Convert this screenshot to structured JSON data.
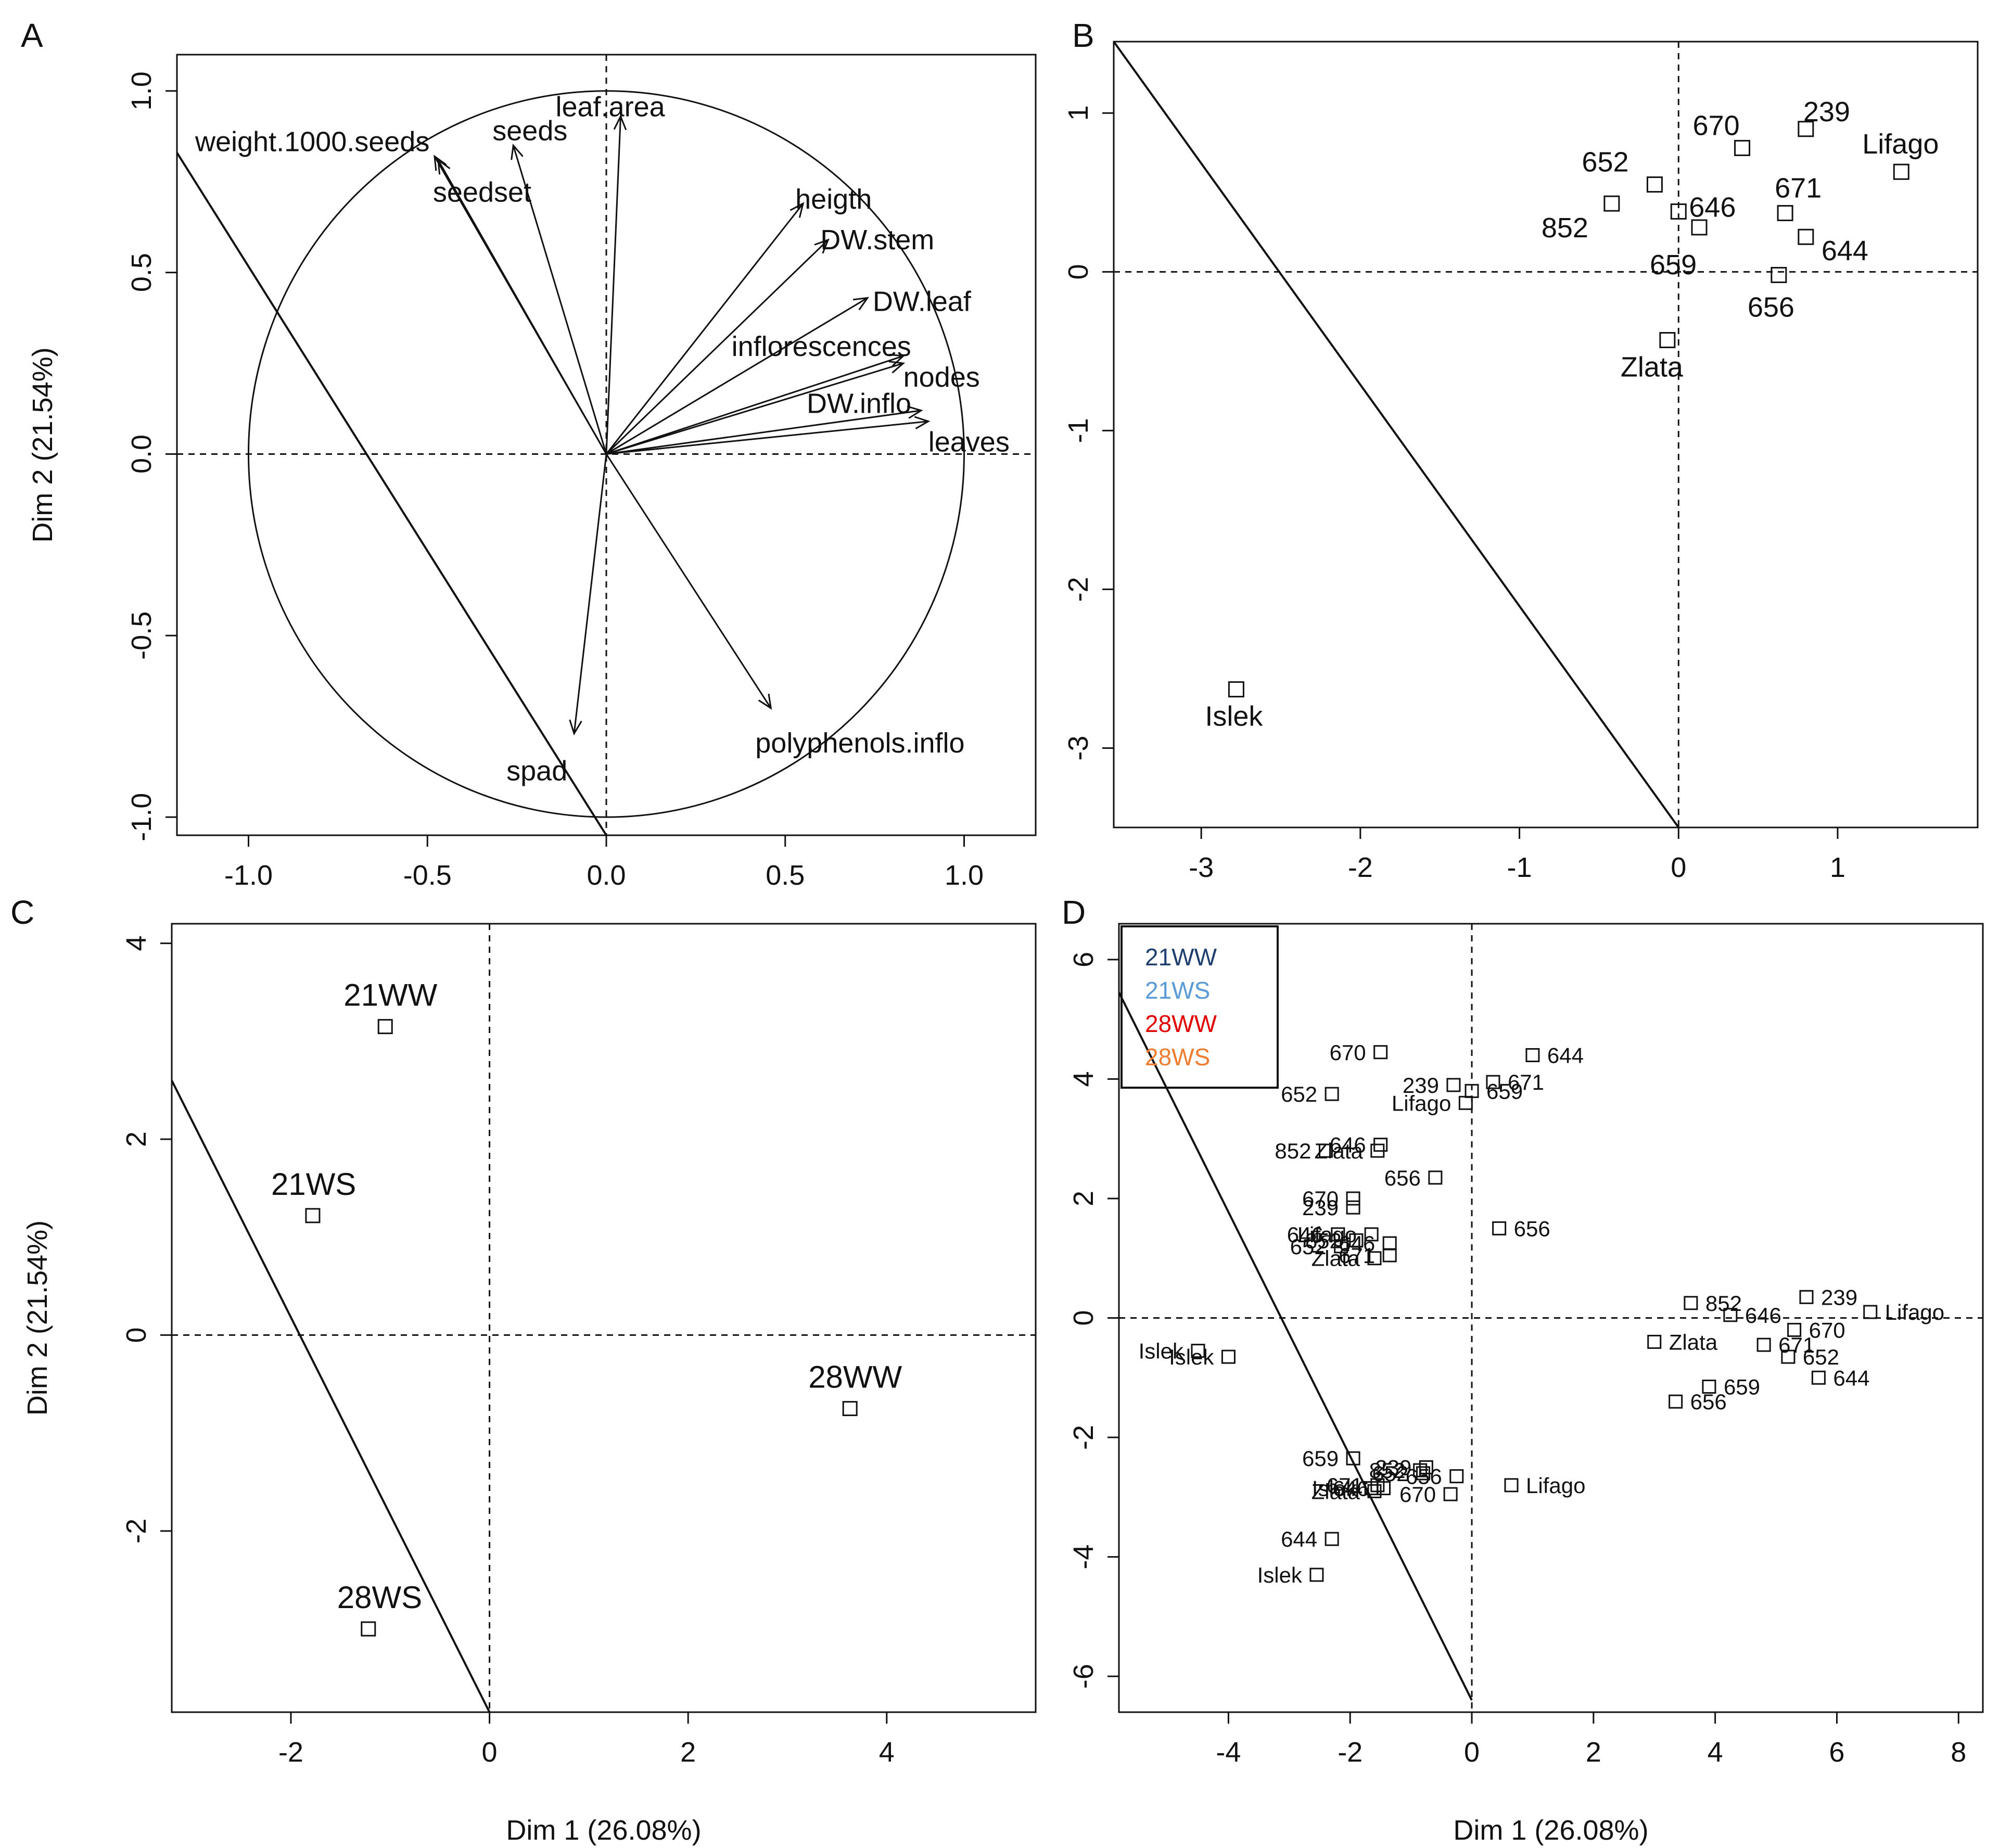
{
  "chart_data": [
    {
      "panel": "A",
      "type": "scatter",
      "title": "",
      "xlabel": "",
      "ylabel": "Dim 2 (21.54%)",
      "xlim": [
        -1.2,
        1.2
      ],
      "ylim": [
        -1.05,
        1.1
      ],
      "xticks": [
        "-1.0",
        "-0.5",
        "0.0",
        "0.5",
        "1.0"
      ],
      "yticks": [
        "-1.0",
        "-0.5",
        "0.0",
        "0.5",
        "1.0"
      ],
      "circle_radius": 1.0,
      "arrows": [
        {
          "name": "leaf.area",
          "x": 0.04,
          "y": 0.93
        },
        {
          "name": "weight.1000.seeds",
          "x": -0.48,
          "y": 0.82
        },
        {
          "name": "seeds",
          "x": -0.26,
          "y": 0.85
        },
        {
          "name": "seedset",
          "x": -0.47,
          "y": 0.81
        },
        {
          "name": "heigth",
          "x": 0.55,
          "y": 0.69
        },
        {
          "name": "DW.stem",
          "x": 0.62,
          "y": 0.59
        },
        {
          "name": "DW.leaf",
          "x": 0.73,
          "y": 0.43
        },
        {
          "name": "inflorescences",
          "x": 0.83,
          "y": 0.27
        },
        {
          "name": "nodes",
          "x": 0.83,
          "y": 0.25
        },
        {
          "name": "DW.inflo",
          "x": 0.88,
          "y": 0.12
        },
        {
          "name": "leaves",
          "x": 0.9,
          "y": 0.09
        },
        {
          "name": "polyphenols.inflo",
          "x": 0.46,
          "y": -0.7
        },
        {
          "name": "spad",
          "x": -0.09,
          "y": -0.77
        }
      ],
      "separator_line": [
        [
          -1.2,
          0.83
        ],
        [
          0.0,
          -1.05
        ]
      ]
    },
    {
      "panel": "B",
      "type": "scatter",
      "title": "",
      "xlabel": "",
      "ylabel": "",
      "xlim": [
        -3.55,
        1.88
      ],
      "ylim": [
        -3.5,
        1.45
      ],
      "xticks": [
        "-3",
        "-2",
        "-1",
        "0",
        "1"
      ],
      "yticks": [
        "-3",
        "-2",
        "-1",
        "0",
        "1"
      ],
      "points": [
        {
          "name": "239",
          "x": 0.8,
          "y": 0.9
        },
        {
          "name": "670",
          "x": 0.4,
          "y": 0.78
        },
        {
          "name": "Lifago",
          "x": 1.4,
          "y": 0.63
        },
        {
          "name": "652",
          "x": -0.15,
          "y": 0.55
        },
        {
          "name": "852",
          "x": -0.42,
          "y": 0.43
        },
        {
          "name": "646",
          "x": 0.0,
          "y": 0.38
        },
        {
          "name": "671",
          "x": 0.67,
          "y": 0.37
        },
        {
          "name": "659",
          "x": 0.13,
          "y": 0.28
        },
        {
          "name": "644",
          "x": 0.8,
          "y": 0.22
        },
        {
          "name": "656",
          "x": 0.63,
          "y": -0.02
        },
        {
          "name": "Zlata",
          "x": -0.07,
          "y": -0.43
        },
        {
          "name": "Islek",
          "x": -2.78,
          "y": -2.63
        }
      ],
      "separator_line": [
        [
          -3.55,
          1.45
        ],
        [
          0.0,
          -3.5
        ]
      ]
    },
    {
      "panel": "C",
      "type": "scatter",
      "title": "",
      "xlabel": "Dim 1 (26.08%)",
      "ylabel": "Dim 2 (21.54%)",
      "xlim": [
        -3.2,
        5.5
      ],
      "ylim": [
        -3.85,
        4.2
      ],
      "xticks": [
        "-2",
        "0",
        "2",
        "4"
      ],
      "yticks": [
        "-2",
        "0",
        "2",
        "4"
      ],
      "points": [
        {
          "name": "21WW",
          "x": -1.05,
          "y": 3.15,
          "color": "#1f3f6e"
        },
        {
          "name": "21WS",
          "x": -1.78,
          "y": 1.22,
          "color": "#5a9bd5"
        },
        {
          "name": "28WW",
          "x": 3.63,
          "y": -0.75,
          "color": "#e00000"
        },
        {
          "name": "28WS",
          "x": -1.22,
          "y": -3.0,
          "color": "#ed7d31"
        }
      ],
      "separator_line": [
        [
          -3.2,
          2.6
        ],
        [
          0.0,
          -3.85
        ]
      ]
    },
    {
      "panel": "D",
      "type": "scatter",
      "title": "",
      "xlabel": "Dim 1 (26.08%)",
      "ylabel": "",
      "xlim": [
        -5.8,
        8.4
      ],
      "ylim": [
        -6.6,
        6.6
      ],
      "xticks": [
        "-4",
        "-2",
        "0",
        "2",
        "4",
        "6",
        "8"
      ],
      "yticks": [
        "-6",
        "-4",
        "-2",
        "0",
        "2",
        "4",
        "6"
      ],
      "legend": {
        "position": "top-left",
        "entries": [
          {
            "name": "21WW",
            "color": "#1f3f6e"
          },
          {
            "name": "21WS",
            "color": "#5a9bd5"
          },
          {
            "name": "28WW",
            "color": "#e00000"
          },
          {
            "name": "28WS",
            "color": "#ed7d31"
          }
        ]
      },
      "series": [
        {
          "name": "21WW",
          "color": "#1f3f6e",
          "points": [
            {
              "name": "644",
              "x": 1.0,
              "y": 4.4
            },
            {
              "name": "670",
              "x": -1.5,
              "y": 4.45
            },
            {
              "name": "239",
              "x": -0.3,
              "y": 3.9
            },
            {
              "name": "671",
              "x": 0.35,
              "y": 3.95
            },
            {
              "name": "652",
              "x": -2.3,
              "y": 3.75
            },
            {
              "name": "659",
              "x": 0.0,
              "y": 3.8
            },
            {
              "name": "Lifago",
              "x": -0.1,
              "y": 3.6
            },
            {
              "name": "646",
              "x": -1.5,
              "y": 2.9
            },
            {
              "name": "Zlata",
              "x": -1.55,
              "y": 2.8
            },
            {
              "name": "852",
              "x": -2.4,
              "y": 2.8
            },
            {
              "name": "656",
              "x": -0.6,
              "y": 2.35
            },
            {
              "name": "Islek",
              "x": -4.0,
              "y": -0.65
            }
          ]
        },
        {
          "name": "21WS",
          "color": "#5a9bd5",
          "points": [
            {
              "name": "670",
              "x": -1.95,
              "y": 2.0
            },
            {
              "name": "239",
              "x": -1.95,
              "y": 1.85
            },
            {
              "name": "656",
              "x": 0.45,
              "y": 1.5
            },
            {
              "name": "Lifago",
              "x": -1.65,
              "y": 1.4
            },
            {
              "name": "646",
              "x": -2.2,
              "y": 1.4
            },
            {
              "name": "646",
              "x": -1.35,
              "y": 1.25
            },
            {
              "name": "652",
              "x": -2.15,
              "y": 1.2
            },
            {
              "name": "852",
              "x": -1.9,
              "y": 1.3
            },
            {
              "name": "671",
              "x": -1.35,
              "y": 1.05
            },
            {
              "name": "Zlata",
              "x": -1.6,
              "y": 1.0
            },
            {
              "name": "Islek",
              "x": -4.5,
              "y": -0.55
            }
          ]
        },
        {
          "name": "28WW",
          "color": "#e00000",
          "points": [
            {
              "name": "852",
              "x": 3.6,
              "y": 0.25
            },
            {
              "name": "646",
              "x": 4.25,
              "y": 0.05
            },
            {
              "name": "239",
              "x": 5.5,
              "y": 0.35
            },
            {
              "name": "Lifago",
              "x": 6.55,
              "y": 0.1
            },
            {
              "name": "670",
              "x": 5.3,
              "y": -0.2
            },
            {
              "name": "Zlata",
              "x": 3.0,
              "y": -0.4
            },
            {
              "name": "671",
              "x": 4.8,
              "y": -0.45
            },
            {
              "name": "652",
              "x": 5.2,
              "y": -0.65
            },
            {
              "name": "644",
              "x": 5.7,
              "y": -1.0
            },
            {
              "name": "659",
              "x": 3.9,
              "y": -1.15
            },
            {
              "name": "656",
              "x": 3.35,
              "y": -1.4
            },
            {
              "name": "Islek",
              "x": -1.65,
              "y": -2.85
            }
          ]
        },
        {
          "name": "28WS",
          "color": "#ed7d31",
          "points": [
            {
              "name": "659",
              "x": -1.95,
              "y": -2.35
            },
            {
              "name": "852",
              "x": -0.85,
              "y": -2.55
            },
            {
              "name": "652",
              "x": -0.8,
              "y": -2.6
            },
            {
              "name": "239",
              "x": -0.75,
              "y": -2.5
            },
            {
              "name": "656",
              "x": -0.25,
              "y": -2.65
            },
            {
              "name": "Lifago",
              "x": 0.65,
              "y": -2.8
            },
            {
              "name": "671",
              "x": -1.55,
              "y": -2.8
            },
            {
              "name": "646",
              "x": -1.45,
              "y": -2.85
            },
            {
              "name": "Zlata",
              "x": -1.6,
              "y": -2.9
            },
            {
              "name": "670",
              "x": -0.35,
              "y": -2.95
            },
            {
              "name": "644",
              "x": -2.3,
              "y": -3.7
            },
            {
              "name": "Islek",
              "x": -2.55,
              "y": -4.3
            }
          ]
        }
      ],
      "separator_line": [
        [
          -5.8,
          5.45
        ],
        [
          0.0,
          -6.4
        ]
      ]
    }
  ]
}
